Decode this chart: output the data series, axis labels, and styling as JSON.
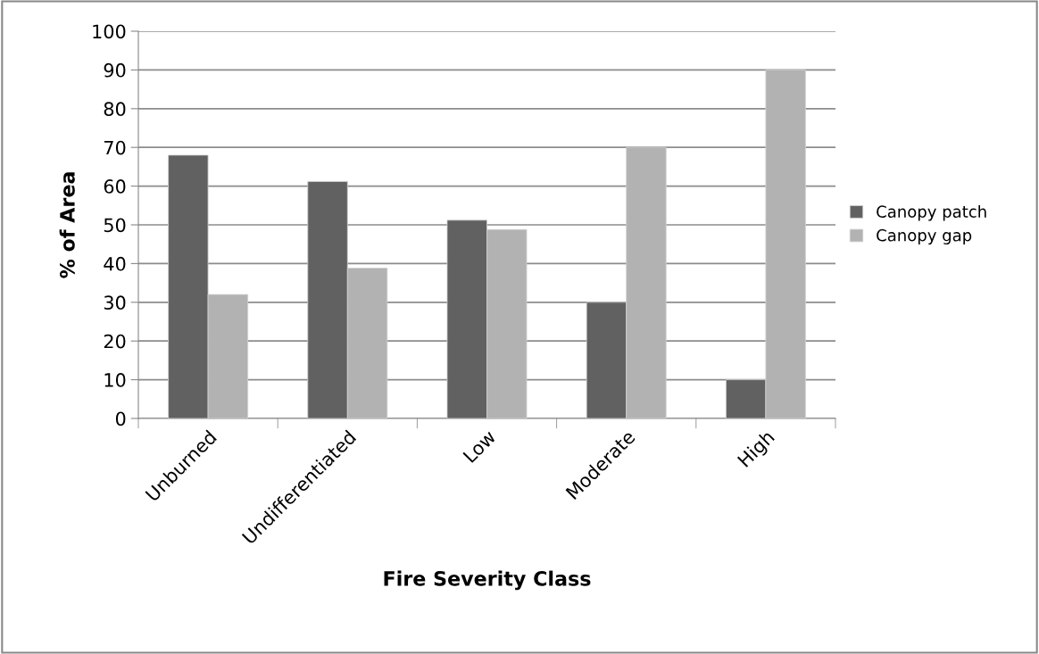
{
  "chart_data": {
    "type": "bar",
    "xlabel": "Fire Severity Class",
    "ylabel": "% of Area",
    "categories": [
      "Unburned",
      "Undifferentiated",
      "Low",
      "Moderate",
      "High"
    ],
    "series": [
      {
        "name": "Canopy patch",
        "color": "#616161",
        "values": [
          68,
          61.2,
          51.2,
          30,
          10
        ]
      },
      {
        "name": "Canopy gap",
        "color": "#b2b2b2",
        "values": [
          32,
          38.8,
          48.8,
          70,
          90
        ]
      }
    ],
    "ylim": [
      0,
      100
    ],
    "yticks": [
      0,
      10,
      20,
      30,
      40,
      50,
      60,
      70,
      80,
      90,
      100
    ],
    "grid": "y",
    "legend": "right"
  }
}
